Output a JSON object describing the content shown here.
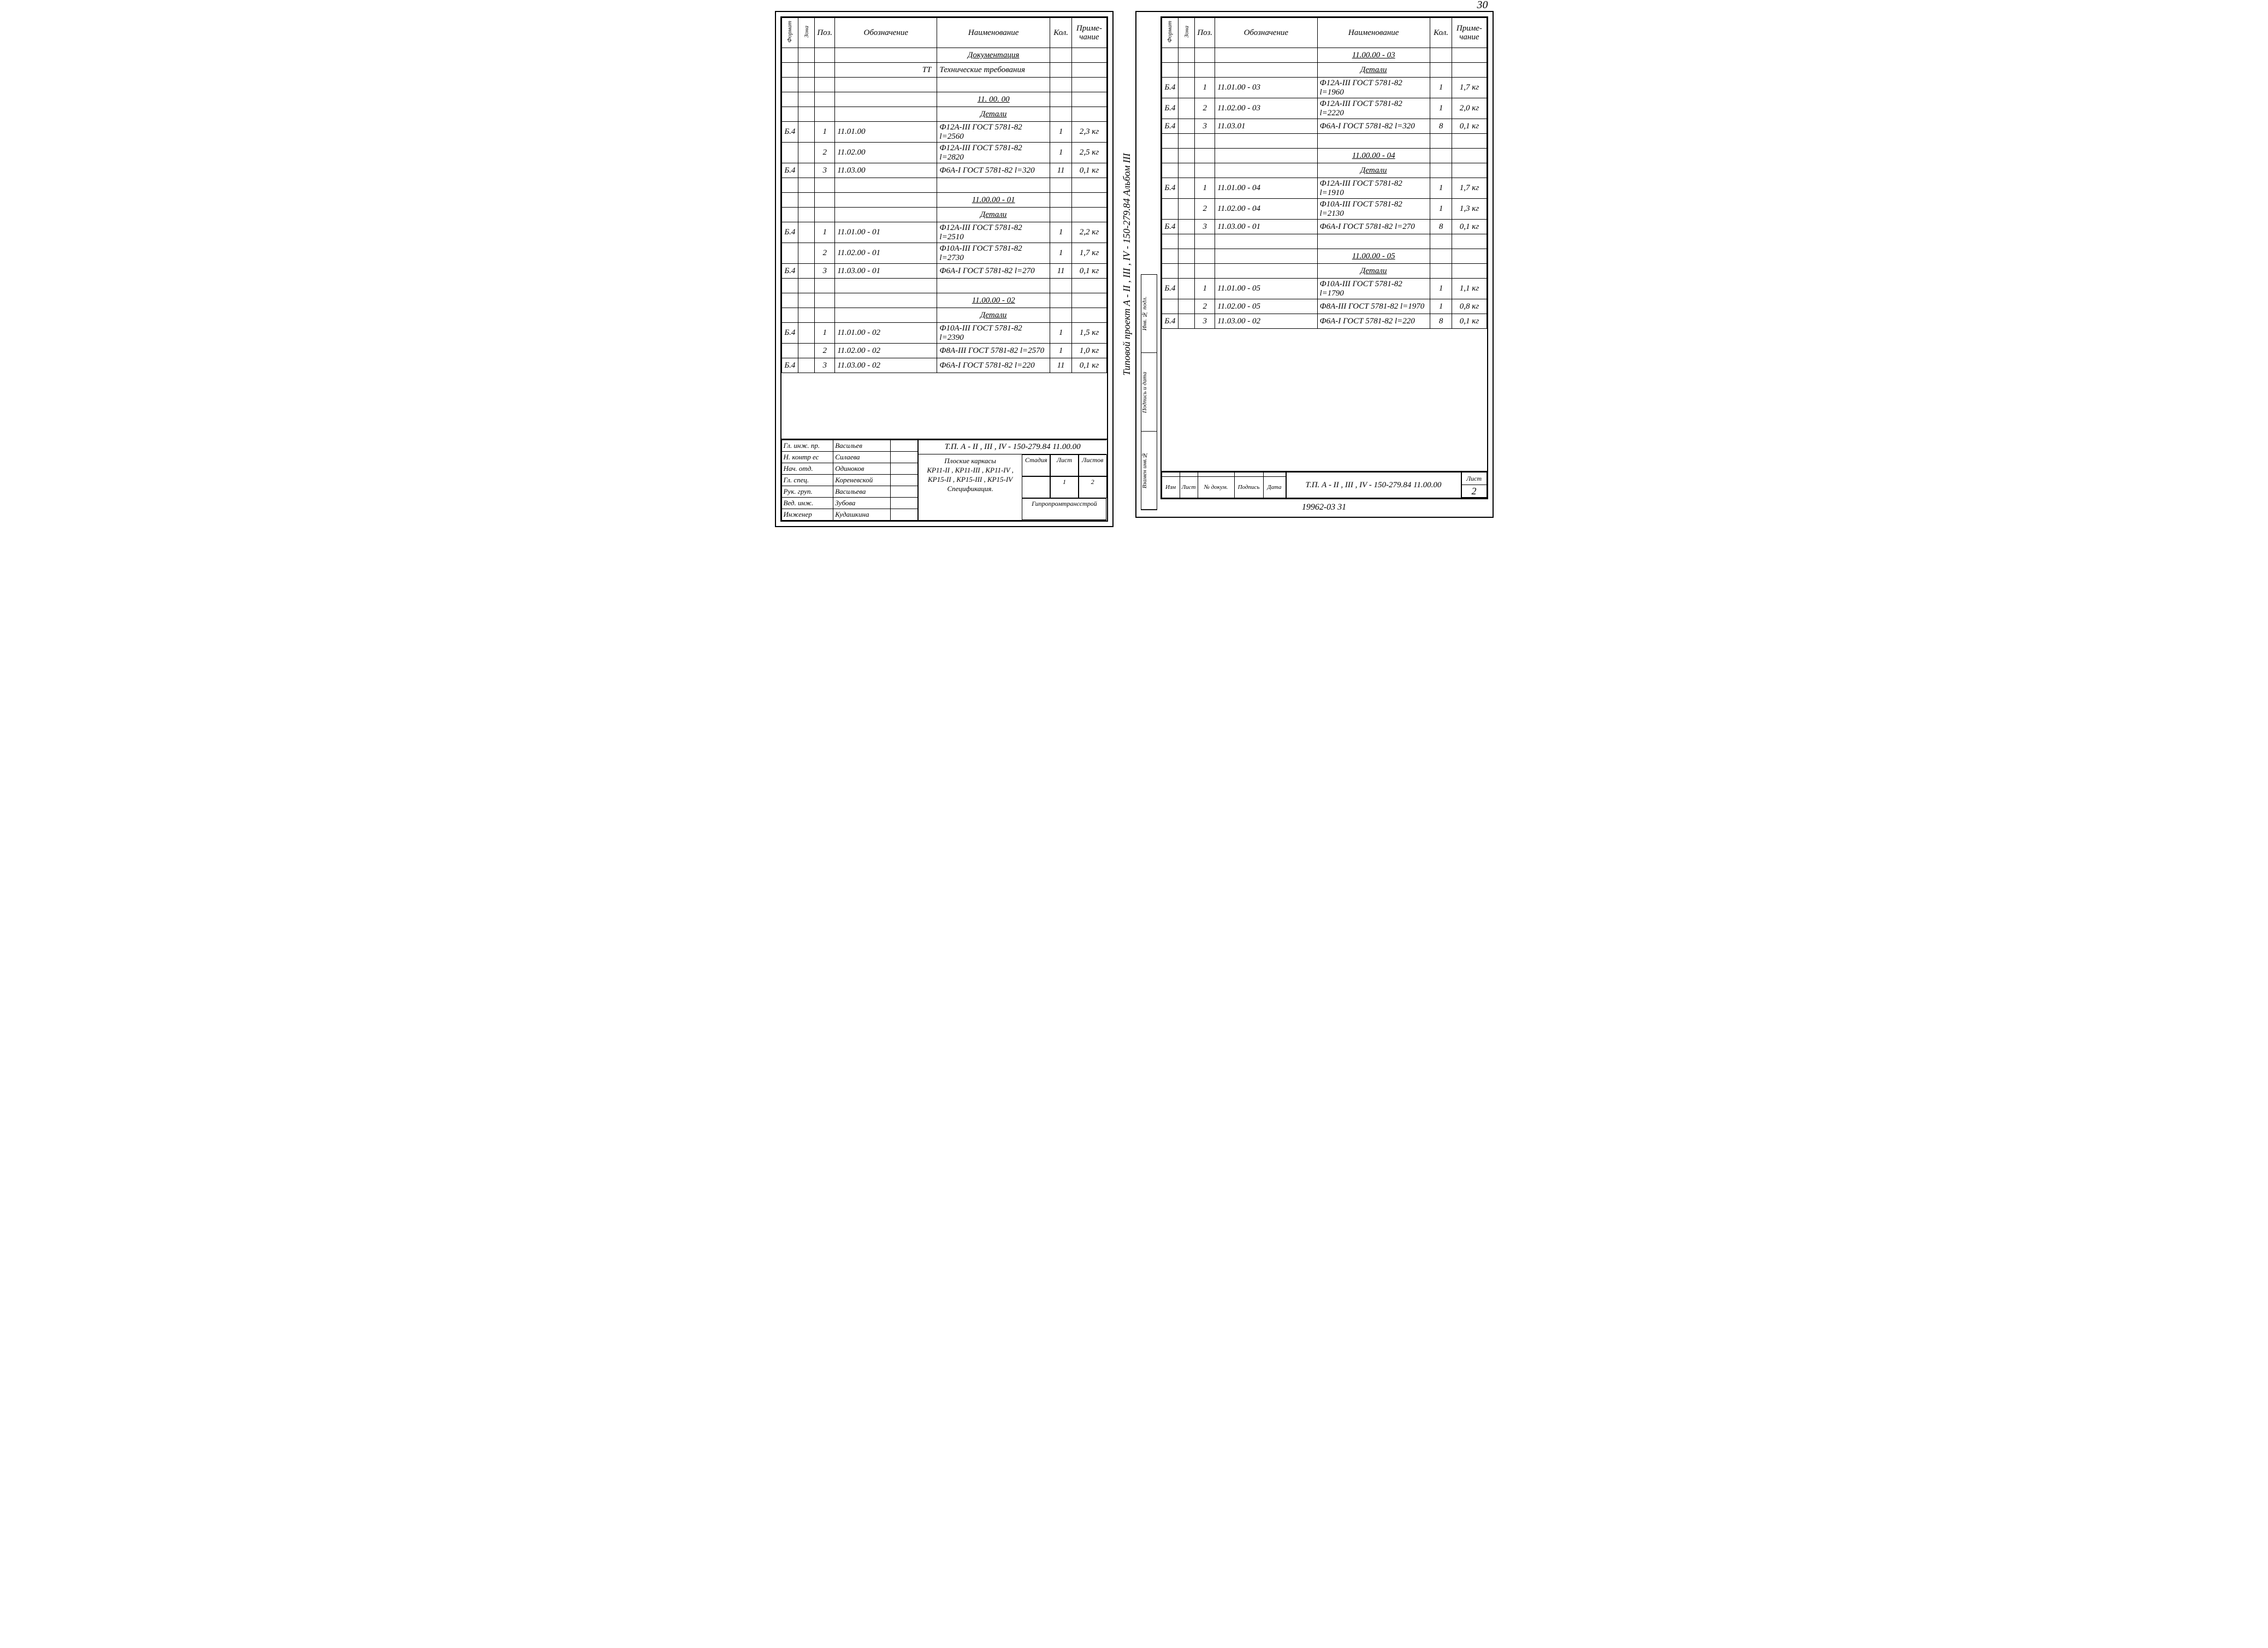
{
  "page_number_top": "30",
  "footer": "19962-03   31",
  "headers": {
    "format": "Формат",
    "zone": "Зона",
    "pos": "Поз.",
    "oboz": "Обозначение",
    "naim": "Наименование",
    "kol": "Кол.",
    "prim": "Приме-чание"
  },
  "left": {
    "rows": [
      {
        "fmt": "",
        "zone": "",
        "pos": "",
        "oboz": "",
        "naim_u": "Документация",
        "kol": "",
        "prim": ""
      },
      {
        "fmt": "",
        "zone": "",
        "pos": "",
        "oboz_r": "ТТ",
        "naim": "Технические требования",
        "kol": "",
        "prim": ""
      },
      {
        "blank": true
      },
      {
        "fmt": "",
        "zone": "",
        "pos": "",
        "oboz": "",
        "naim_u": "11. 00. 00",
        "kol": "",
        "prim": ""
      },
      {
        "fmt": "",
        "zone": "",
        "pos": "",
        "oboz": "",
        "naim_u": "Детали",
        "kol": "",
        "prim": ""
      },
      {
        "fmt": "Б.4",
        "zone": "",
        "pos": "1",
        "oboz": "11.01.00",
        "naim": "Ф12А-III  ГОСТ 5781-82   l=2560",
        "kol": "1",
        "prim": "2,3 кг"
      },
      {
        "fmt": "",
        "zone": "",
        "pos": "2",
        "oboz": "11.02.00",
        "naim": "Ф12А-III  ГОСТ 5781-82   l=2820",
        "kol": "1",
        "prim": "2,5 кг"
      },
      {
        "fmt": "Б.4",
        "zone": "",
        "pos": "3",
        "oboz": "11.03.00",
        "naim": "Ф6А-I  ГОСТ 5781-82   l=320",
        "kol": "11",
        "prim": "0,1 кг"
      },
      {
        "blank": true
      },
      {
        "fmt": "",
        "zone": "",
        "pos": "",
        "oboz": "",
        "naim_u": "11.00.00 - 01",
        "kol": "",
        "prim": ""
      },
      {
        "fmt": "",
        "zone": "",
        "pos": "",
        "oboz": "",
        "naim_u": "Детали",
        "kol": "",
        "prim": ""
      },
      {
        "fmt": "Б.4",
        "zone": "",
        "pos": "1",
        "oboz": "11.01.00 - 01",
        "naim": "Ф12А-III ГОСТ 5781-82   l=2510",
        "kol": "1",
        "prim": "2,2 кг"
      },
      {
        "fmt": "",
        "zone": "",
        "pos": "2",
        "oboz": "11.02.00 - 01",
        "naim": "Ф10А-III ГОСТ 5781-82   l=2730",
        "kol": "1",
        "prim": "1,7 кг"
      },
      {
        "fmt": "Б.4",
        "zone": "",
        "pos": "3",
        "oboz": "11.03.00 - 01",
        "naim": "Ф6А-I  ГОСТ 5781-82   l=270",
        "kol": "11",
        "prim": "0,1 кг"
      },
      {
        "blank": true
      },
      {
        "fmt": "",
        "zone": "",
        "pos": "",
        "oboz": "",
        "naim_u": "11.00.00 - 02",
        "kol": "",
        "prim": ""
      },
      {
        "fmt": "",
        "zone": "",
        "pos": "",
        "oboz": "",
        "naim_u": "Детали",
        "kol": "",
        "prim": ""
      },
      {
        "fmt": "Б.4",
        "zone": "",
        "pos": "1",
        "oboz": "11.01.00 - 02",
        "naim": "Ф10А-III ГОСТ 5781-82  l=2390",
        "kol": "1",
        "prim": "1,5 кг"
      },
      {
        "fmt": "",
        "zone": "",
        "pos": "2",
        "oboz": "11.02.00 - 02",
        "naim": "Ф8А-III  ГОСТ 5781-82  l=2570",
        "kol": "1",
        "prim": "1,0 кг"
      },
      {
        "fmt": "Б.4",
        "zone": "",
        "pos": "3",
        "oboz": "11.03.00 - 02",
        "naim": "Ф6А-I  ГОСТ 5781-82  l=220",
        "kol": "11",
        "prim": "0,1 кг"
      }
    ],
    "stamp": {
      "sign_rows": [
        [
          "Гл. инж. пр.",
          "Васильев",
          ""
        ],
        [
          "Н. контр ес",
          "Силаева",
          ""
        ],
        [
          "Нач. отд.",
          "Одиноков",
          ""
        ],
        [
          "Гл. спец.",
          "Кореневской",
          ""
        ],
        [
          "Рук. груп.",
          "Васильева",
          ""
        ],
        [
          "Вед. инж.",
          "Зубова",
          ""
        ],
        [
          "Инженер",
          "Кудашкина",
          ""
        ]
      ],
      "title": "Т.П.  А - II , III , IV - 150-279.84     11.00.00",
      "desc": "Плоские  каркасы\nКР11-II ,  КР11-III ,  КР11-IV ,\nКР15-II ,  КР15-III ,  КР15-IV\nСпецификация.",
      "grid": {
        "h1": "Стадия",
        "h2": "Лист",
        "h3": "Листов",
        "v1": "",
        "v2": "1",
        "v3": "2",
        "org": "Гипропромтрансстрой"
      }
    }
  },
  "right": {
    "side_text": "Типовой  проект   А - II , III , IV - 150-279.84    Альбом III",
    "side_labels": [
      "Инв. № подл.",
      "Подпись и дата",
      "Взамен инв.№"
    ],
    "rows": [
      {
        "fmt": "",
        "zone": "",
        "pos": "",
        "oboz": "",
        "naim_u": "11.00.00 - 03",
        "kol": "",
        "prim": ""
      },
      {
        "fmt": "",
        "zone": "",
        "pos": "",
        "oboz": "",
        "naim_u": "Детали",
        "kol": "",
        "prim": ""
      },
      {
        "fmt": "Б.4",
        "zone": "",
        "pos": "1",
        "oboz": "11.01.00 - 03",
        "naim": "Ф12А-III  ГОСТ 5781-82  l=1960",
        "kol": "1",
        "prim": "1,7 кг"
      },
      {
        "fmt": "Б.4",
        "zone": "",
        "pos": "2",
        "oboz": "11.02.00 - 03",
        "naim": "Ф12А-III  ГОСТ 5781-82  l=2220",
        "kol": "1",
        "prim": "2,0 кг"
      },
      {
        "fmt": "Б.4",
        "zone": "",
        "pos": "3",
        "oboz": "11.03.01",
        "naim": "Ф6А-I  ГОСТ 5781-82   l=320",
        "kol": "8",
        "prim": "0,1 кг"
      },
      {
        "blank": true
      },
      {
        "fmt": "",
        "zone": "",
        "pos": "",
        "oboz": "",
        "naim_u": "11.00.00 - 04",
        "kol": "",
        "prim": ""
      },
      {
        "fmt": "",
        "zone": "",
        "pos": "",
        "oboz": "",
        "naim_u": "Детали",
        "kol": "",
        "prim": ""
      },
      {
        "fmt": "Б.4",
        "zone": "",
        "pos": "1",
        "oboz": "11.01.00 - 04",
        "naim": "Ф12А-III  ГОСТ 5781-82  l=1910",
        "kol": "1",
        "prim": "1,7 кг"
      },
      {
        "fmt": "",
        "zone": "",
        "pos": "2",
        "oboz": "11.02.00 - 04",
        "naim": "Ф10А-III  ГОСТ 5781-82  l=2130",
        "kol": "1",
        "prim": "1,3 кг"
      },
      {
        "fmt": "Б.4",
        "zone": "",
        "pos": "3",
        "oboz": "11.03.00 - 01",
        "naim": "Ф6А-I  ГОСТ 5781-82  l=270",
        "kol": "8",
        "prim": "0,1 кг"
      },
      {
        "blank": true
      },
      {
        "fmt": "",
        "zone": "",
        "pos": "",
        "oboz": "",
        "naim_u": "11.00.00 - 05",
        "kol": "",
        "prim": ""
      },
      {
        "fmt": "",
        "zone": "",
        "pos": "",
        "oboz": "",
        "naim_u": "Детали",
        "kol": "",
        "prim": ""
      },
      {
        "fmt": "Б.4",
        "zone": "",
        "pos": "1",
        "oboz": "11.01.00 - 05",
        "naim": "Ф10А-III ГОСТ 5781-82   l=1790",
        "kol": "1",
        "prim": "1,1 кг"
      },
      {
        "fmt": "",
        "zone": "",
        "pos": "2",
        "oboz": "11.02.00 - 05",
        "naim": "Ф8А-III  ГОСТ 5781-82   l=1970",
        "kol": "1",
        "prim": "0,8 кг"
      },
      {
        "fmt": "Б.4",
        "zone": "",
        "pos": "3",
        "oboz": "11.03.00 - 02",
        "naim": "Ф6А-I  ГОСТ 5781-82  l=220",
        "kol": "8",
        "prim": "0,1 кг"
      }
    ],
    "stamp": {
      "small_headers": [
        "Изм",
        "Лист",
        "№ докум.",
        "Подпись",
        "Дата"
      ],
      "title": "Т.П.   А - II , III , IV - 150-279.84   11.00.00",
      "list_h": "Лист",
      "list_v": "2"
    }
  }
}
